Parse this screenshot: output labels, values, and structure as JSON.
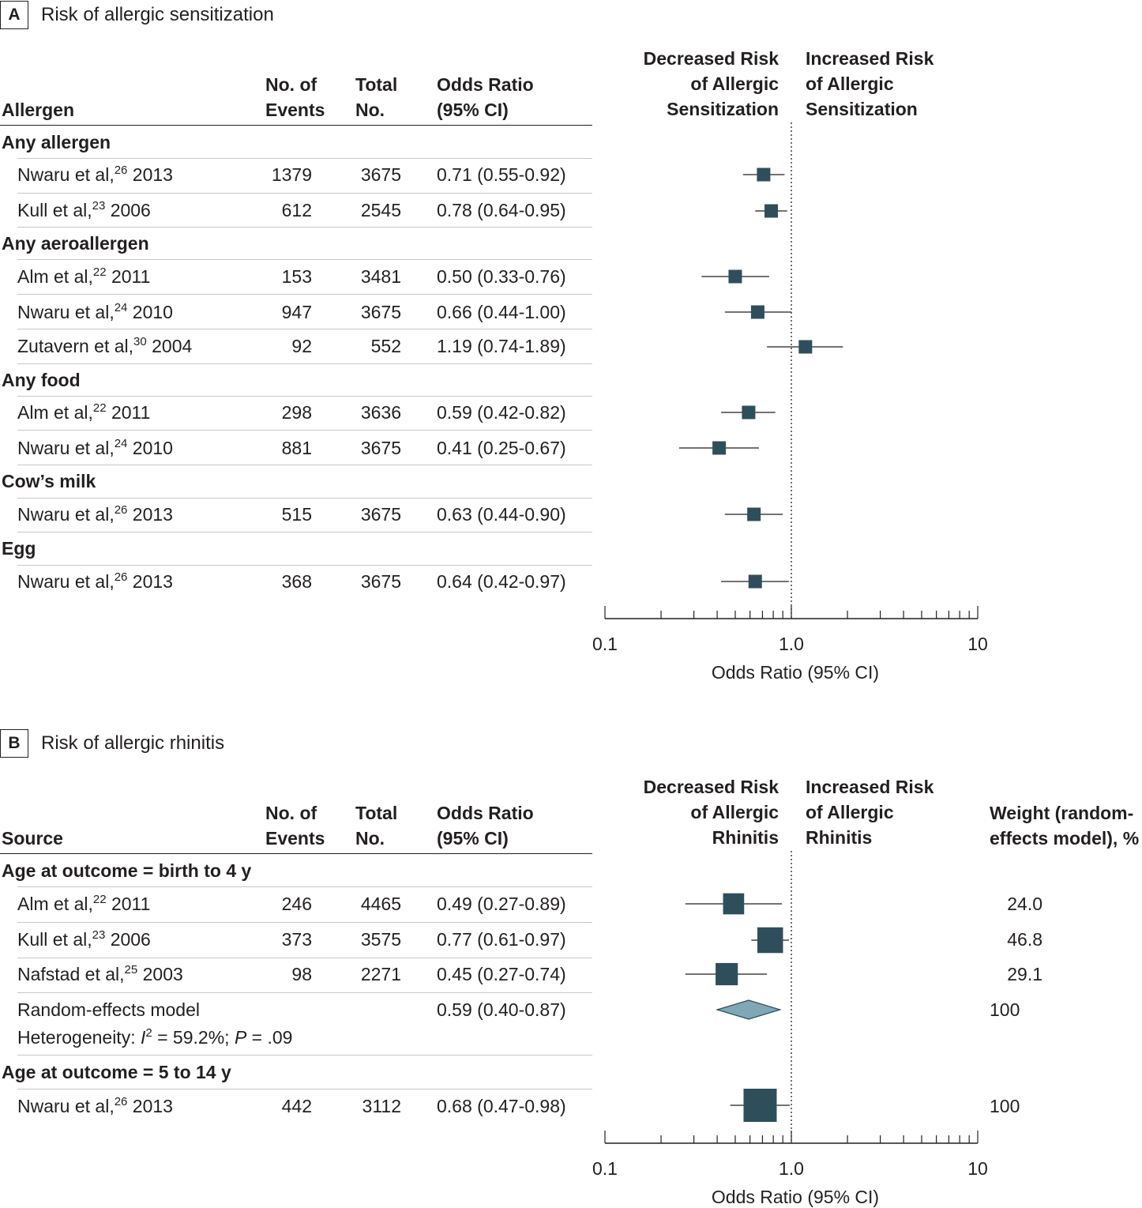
{
  "panel_a": {
    "letter": "A",
    "title": "Risk of allergic sensitization",
    "columns": {
      "first": "Allergen",
      "events": "No. of\nEvents",
      "total": "Total\nNo.",
      "or": "Odds Ratio\n(95% CI)"
    },
    "favors_left": "Decreased Risk\nof Allergic\nSensitization",
    "favors_right": "Increased Risk\nof Allergic\nSensitization",
    "groups": [
      {
        "label": "Any allergen",
        "rows": [
          {
            "author": "Nwaru et al,",
            "ref": "26",
            "year": "2013",
            "events": "1379",
            "total": "3675",
            "or_text": "0.71 (0.55-0.92)"
          },
          {
            "author": "Kull et al,",
            "ref": "23",
            "year": "2006",
            "events": "612",
            "total": "2545",
            "or_text": "0.78 (0.64-0.95)"
          }
        ]
      },
      {
        "label": "Any aeroallergen",
        "rows": [
          {
            "author": "Alm et al,",
            "ref": "22",
            "year": "2011",
            "events": "153",
            "total": "3481",
            "or_text": "0.50 (0.33-0.76)"
          },
          {
            "author": "Nwaru et al,",
            "ref": "24",
            "year": "2010",
            "events": "947",
            "total": "3675",
            "or_text": "0.66 (0.44-1.00)"
          },
          {
            "author": "Zutavern et al,",
            "ref": "30",
            "year": "2004",
            "events": "92",
            "total": "552",
            "or_text": "1.19 (0.74-1.89)"
          }
        ]
      },
      {
        "label": "Any food",
        "rows": [
          {
            "author": "Alm et al,",
            "ref": "22",
            "year": "2011",
            "events": "298",
            "total": "3636",
            "or_text": "0.59 (0.42-0.82)"
          },
          {
            "author": "Nwaru et al,",
            "ref": "24",
            "year": "2010",
            "events": "881",
            "total": "3675",
            "or_text": "0.41 (0.25-0.67)"
          }
        ]
      },
      {
        "label": "Cow’s milk",
        "rows": [
          {
            "author": "Nwaru et al,",
            "ref": "26",
            "year": "2013",
            "events": "515",
            "total": "3675",
            "or_text": "0.63 (0.44-0.90)"
          }
        ]
      },
      {
        "label": "Egg",
        "rows": [
          {
            "author": "Nwaru et al,",
            "ref": "26",
            "year": "2013",
            "events": "368",
            "total": "3675",
            "or_text": "0.64 (0.42-0.97)"
          }
        ]
      }
    ],
    "axis": {
      "ticks": [
        "0.1",
        "1.0",
        "10"
      ],
      "label": "Odds Ratio (95% CI)"
    }
  },
  "panel_b": {
    "letter": "B",
    "title": "Risk of allergic rhinitis",
    "columns": {
      "first": "Source",
      "events": "No. of\nEvents",
      "total": "Total\nNo.",
      "or": "Odds Ratio\n(95% CI)",
      "weight": "Weight (random-\neffects model), %"
    },
    "favors_left": "Decreased Risk\nof Allergic\nRhinitis",
    "favors_right": "Increased Risk\nof Allergic\nRhinitis",
    "groups": [
      {
        "label": "Age at outcome = birth to 4 y",
        "rows": [
          {
            "author": "Alm et al,",
            "ref": "22",
            "year": "2011",
            "events": "246",
            "total": "4465",
            "or_text": "0.49 (0.27-0.89)",
            "weight": "24.0"
          },
          {
            "author": "Kull et al,",
            "ref": "23",
            "year": "2006",
            "events": "373",
            "total": "3575",
            "or_text": "0.77 (0.61-0.97)",
            "weight": "46.8"
          },
          {
            "author": "Nafstad et al,",
            "ref": "25",
            "year": "2003",
            "events": "98",
            "total": "2271",
            "or_text": "0.45 (0.27-0.74)",
            "weight": "29.1"
          }
        ],
        "pooled": {
          "label": "Random-effects model",
          "het_prefix": "Heterogeneity: ",
          "het_i": "I",
          "het_i_sup": "2",
          "het_i_value": " = 59.2%; ",
          "het_p": "P",
          "het_p_value": " = .09",
          "or_text": "0.59 (0.40-0.87)",
          "weight": "100"
        }
      },
      {
        "label": "Age at outcome = 5 to 14 y",
        "rows": [
          {
            "author": "Nwaru et al,",
            "ref": "26",
            "year": "2013",
            "events": "442",
            "total": "3112",
            "or_text": "0.68 (0.47-0.98)",
            "weight": "100"
          }
        ]
      }
    ],
    "axis": {
      "ticks": [
        "0.1",
        "1.0",
        "10"
      ],
      "label": "Odds Ratio (95% CI)"
    }
  },
  "chart_data": [
    {
      "type": "forest",
      "title": "Risk of allergic sensitization",
      "xlabel": "Odds Ratio (95% CI)",
      "x_scale": "log",
      "xlim": [
        0.1,
        10
      ],
      "reference_line": 1.0,
      "series": [
        {
          "name": "Nwaru et al, 2013 (Any allergen)",
          "or": 0.71,
          "lower": 0.55,
          "upper": 0.92
        },
        {
          "name": "Kull et al, 2006 (Any allergen)",
          "or": 0.78,
          "lower": 0.64,
          "upper": 0.95
        },
        {
          "name": "Alm et al, 2011 (Any aeroallergen)",
          "or": 0.5,
          "lower": 0.33,
          "upper": 0.76
        },
        {
          "name": "Nwaru et al, 2010 (Any aeroallergen)",
          "or": 0.66,
          "lower": 0.44,
          "upper": 1.0
        },
        {
          "name": "Zutavern et al, 2004 (Any aeroallergen)",
          "or": 1.19,
          "lower": 0.74,
          "upper": 1.89
        },
        {
          "name": "Alm et al, 2011 (Any food)",
          "or": 0.59,
          "lower": 0.42,
          "upper": 0.82
        },
        {
          "name": "Nwaru et al, 2010 (Any food)",
          "or": 0.41,
          "lower": 0.25,
          "upper": 0.67
        },
        {
          "name": "Nwaru et al, 2013 (Cow’s milk)",
          "or": 0.63,
          "lower": 0.44,
          "upper": 0.9
        },
        {
          "name": "Nwaru et al, 2013 (Egg)",
          "or": 0.64,
          "lower": 0.42,
          "upper": 0.97
        }
      ]
    },
    {
      "type": "forest",
      "title": "Risk of allergic rhinitis",
      "xlabel": "Odds Ratio (95% CI)",
      "x_scale": "log",
      "xlim": [
        0.1,
        10
      ],
      "reference_line": 1.0,
      "series": [
        {
          "name": "Alm et al, 2011",
          "or": 0.49,
          "lower": 0.27,
          "upper": 0.89,
          "weight": 24.0
        },
        {
          "name": "Kull et al, 2006",
          "or": 0.77,
          "lower": 0.61,
          "upper": 0.97,
          "weight": 46.8
        },
        {
          "name": "Nafstad et al, 2003",
          "or": 0.45,
          "lower": 0.27,
          "upper": 0.74,
          "weight": 29.1
        },
        {
          "name": "Random-effects model",
          "or": 0.59,
          "lower": 0.4,
          "upper": 0.87,
          "weight": 100,
          "pooled": true
        },
        {
          "name": "Nwaru et al, 2013",
          "or": 0.68,
          "lower": 0.47,
          "upper": 0.98,
          "weight": 100
        }
      ]
    }
  ]
}
